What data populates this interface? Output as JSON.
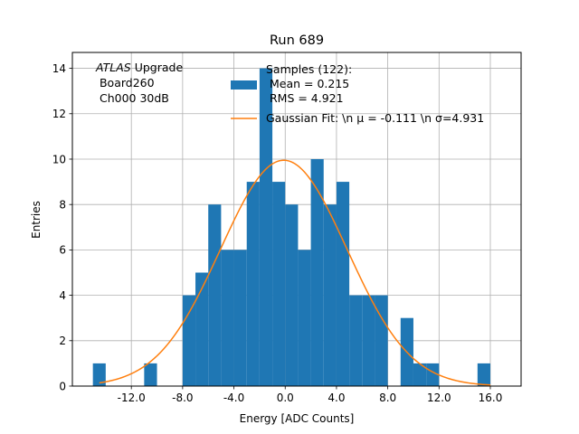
{
  "chart_data": {
    "type": "bar",
    "title": "Run 689",
    "xlabel": "Energy [ADC Counts]",
    "ylabel": "Entries",
    "xlim": [
      -16.6,
      18.4
    ],
    "ylim": [
      0,
      14.7
    ],
    "grid": true,
    "xticks": [
      -12,
      -8,
      -4,
      0,
      4,
      8,
      12,
      16
    ],
    "xtick_labels": [
      "-12.0",
      "-8.0",
      "-4.0",
      "0.0",
      "4.0",
      "8.0",
      "12.0",
      "16.0"
    ],
    "yticks": [
      0,
      2,
      4,
      6,
      8,
      10,
      12,
      14
    ],
    "ytick_labels": [
      "0",
      "2",
      "4",
      "6",
      "8",
      "10",
      "12",
      "14"
    ],
    "bin_width": 1,
    "bin_left_edges": [
      -15,
      -14,
      -13,
      -12,
      -11,
      -10,
      -9,
      -8,
      -7,
      -6,
      -5,
      -4,
      -3,
      -2,
      -1,
      0,
      1,
      2,
      3,
      4,
      5,
      6,
      7,
      8,
      9,
      10,
      11,
      12,
      13,
      14,
      15
    ],
    "values": [
      1,
      0,
      0,
      0,
      1,
      0,
      0,
      4,
      5,
      8,
      6,
      6,
      9,
      14,
      9,
      8,
      6,
      10,
      8,
      9,
      4,
      4,
      4,
      0,
      3,
      1,
      1,
      0,
      0,
      0,
      1
    ],
    "bar_color": "#1f77b4",
    "fit": {
      "type": "gaussian",
      "amplitude": 9.95,
      "mu": -0.111,
      "sigma": 4.931,
      "x_range": [
        -14.5,
        16.0
      ],
      "color": "#ff7f0e"
    },
    "annotation": {
      "italic": "ATLAS",
      "line1_rest": " Upgrade",
      "line2": " Board260",
      "line3": " Ch000 30dB"
    },
    "legend": {
      "position": "top-right",
      "samples": {
        "line1": "Samples (122):",
        "line2": " Mean = 0.215",
        "line3": " RMS = 4.921"
      },
      "fit_label": "Gaussian Fit: \\n μ = -0.111 \\n σ=4.931"
    }
  }
}
